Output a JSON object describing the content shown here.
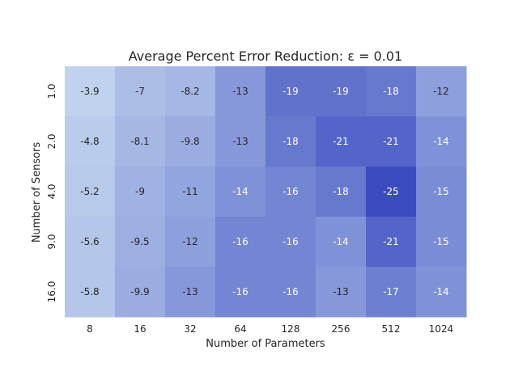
{
  "chart_data": {
    "type": "heatmap",
    "title": "Average Percent Error Reduction: ε = 0.01",
    "xlabel": "Number of Parameters",
    "ylabel": "Number of Sensors",
    "x_categories": [
      "8",
      "16",
      "32",
      "64",
      "128",
      "256",
      "512",
      "1024"
    ],
    "y_categories": [
      "1.0",
      "2.0",
      "4.0",
      "9.0",
      "16.0"
    ],
    "values": [
      [
        -3.9,
        -7,
        -8.2,
        -13,
        -19,
        -19,
        -18,
        -12
      ],
      [
        -4.8,
        -8.1,
        -9.8,
        -13,
        -18,
        -21,
        -21,
        -14
      ],
      [
        -5.2,
        -9,
        -11,
        -14,
        -16,
        -18,
        -25,
        -15
      ],
      [
        -5.6,
        -9.5,
        -12,
        -16,
        -16,
        -14,
        -21,
        -15
      ],
      [
        -5.8,
        -9.9,
        -13,
        -16,
        -16,
        -13,
        -17,
        -14
      ]
    ],
    "value_labels": [
      [
        "-3.9",
        "-7",
        "-8.2",
        "-13",
        "-19",
        "-19",
        "-18",
        "-12"
      ],
      [
        "-4.8",
        "-8.1",
        "-9.8",
        "-13",
        "-18",
        "-21",
        "-21",
        "-14"
      ],
      [
        "-5.2",
        "-9",
        "-11",
        "-14",
        "-16",
        "-18",
        "-25",
        "-15"
      ],
      [
        "-5.6",
        "-9.5",
        "-12",
        "-16",
        "-16",
        "-14",
        "-21",
        "-15"
      ],
      [
        "-5.8",
        "-9.9",
        "-13",
        "-16",
        "-16",
        "-13",
        "-17",
        "-14"
      ]
    ],
    "color_range": [
      -25,
      -3.9
    ],
    "colors": {
      "low_value": "#3b4cc0",
      "high_value": "#c0d2ed",
      "dark_text": "#262626",
      "light_text": "#ffffff"
    },
    "colorbar": false,
    "grid": false
  }
}
